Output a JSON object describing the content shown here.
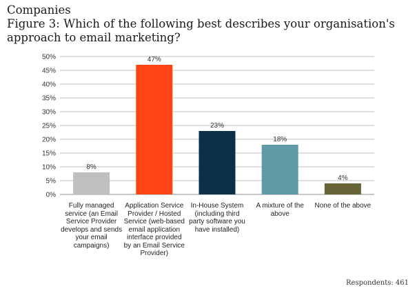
{
  "header": {
    "line1": "Companies",
    "line2": "Figure 3: Which of the following best describes your organisation's approach to email marketing?"
  },
  "footer": {
    "respondents": "Respondents: 461"
  },
  "chart_data": {
    "type": "bar",
    "title": "Figure 3: Which of the following best describes your organisation's approach to email marketing?",
    "categories": [
      "Fully managed service (an Email Service Provider develops and sends your email campaigns)",
      "Application Service Provider / Hosted Service (web-based email application interface provided by an Email Service Provider)",
      "In-House System (including third party software you have installed)",
      "A mixture of the above",
      "None of the above"
    ],
    "values": [
      8,
      47,
      23,
      18,
      4
    ],
    "value_labels": [
      "8%",
      "47%",
      "23%",
      "18%",
      "4%"
    ],
    "colors": [
      "#bfbfbf",
      "#ff4515",
      "#0b3148",
      "#5e9ba4",
      "#666436"
    ],
    "yticks": [
      "0%",
      "5%",
      "10%",
      "15%",
      "20%",
      "25%",
      "30%",
      "35%",
      "40%",
      "45%",
      "50%"
    ],
    "ylim": [
      0,
      50
    ],
    "grid": true,
    "xlabel": "",
    "ylabel": ""
  }
}
